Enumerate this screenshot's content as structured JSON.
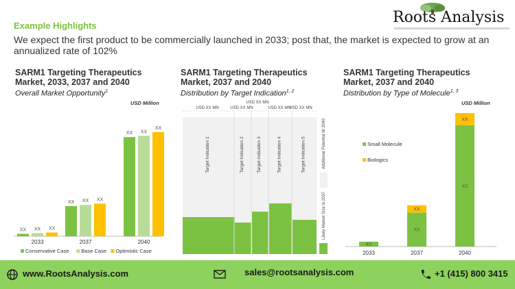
{
  "header": {
    "title": "Example Highlights",
    "text": "We expect the first product to be commercially launched in 2033; post that, the market is expected to grow at an annualized rate of 102%",
    "logo_text": "Roots Analysis"
  },
  "panels": [
    {
      "title": "SARM1 Targeting Therapeutics Market, 2033, 2037 and 2040",
      "subtitle": "Overall Market Opportunity",
      "sup": "1",
      "unit": "USD Million"
    },
    {
      "title": "SARM1 Targeting Therapeutics Market, 2037 and 2040",
      "subtitle": "Distribution by Target Indication",
      "sup": "1, 2",
      "unit": ""
    },
    {
      "title": "SARM1 Targeting Therapeutics Market, 2037 and 2040",
      "subtitle": "Distribution by Type of Molecule",
      "sup": "1, 3",
      "unit": "USD Million"
    }
  ],
  "chart_data": [
    {
      "type": "bar",
      "categories": [
        "2033",
        "2037",
        "2040"
      ],
      "series": [
        {
          "name": "Conservative Case",
          "color": "#7cc242",
          "values": [
            2,
            24,
            79
          ],
          "labels": [
            "XX",
            "XX",
            "XX"
          ]
        },
        {
          "name": "Base Case",
          "color": "#b8dc98",
          "values": [
            2.5,
            25,
            80
          ],
          "labels": [
            "XX",
            "XX",
            "XX"
          ]
        },
        {
          "name": "Optimistic Case",
          "color": "#ffc000",
          "values": [
            3,
            26,
            83
          ],
          "labels": [
            "XX",
            "XX",
            "XX"
          ]
        }
      ],
      "legend": "bottom"
    },
    {
      "type": "bar",
      "categories": [
        "Target Indication 1",
        "Target Indication 2",
        "Target Indication 3",
        "Target Indication 4",
        "Target Indication 5",
        "Additional Potential till 2040",
        "Likely Market Size in 2037"
      ],
      "top_labels": [
        "USD XX MN",
        "USD XX MN",
        "USD XX MN",
        "USD XX MN",
        "USD XX MN"
      ],
      "heights": [
        0.27,
        0.23,
        0.31,
        0.37,
        0.25,
        1.0,
        0.08
      ]
    },
    {
      "type": "bar",
      "categories": [
        "2033",
        "2037",
        "2040"
      ],
      "series": [
        {
          "name": "Small Molecule",
          "color": "#7cc242",
          "values": [
            4,
            28,
            100
          ],
          "labels": [
            "XX",
            "XX",
            "XX"
          ]
        },
        {
          "name": "Biologics",
          "color": "#ffc000",
          "values": [
            0,
            6,
            10
          ],
          "labels": [
            "",
            "XX",
            "XX"
          ]
        }
      ],
      "legend": "left"
    }
  ],
  "footer": {
    "website": "www.RootsAnalysis.com",
    "email": "sales@rootsanalysis.com",
    "phone": "+1 (415) 800 3415"
  }
}
